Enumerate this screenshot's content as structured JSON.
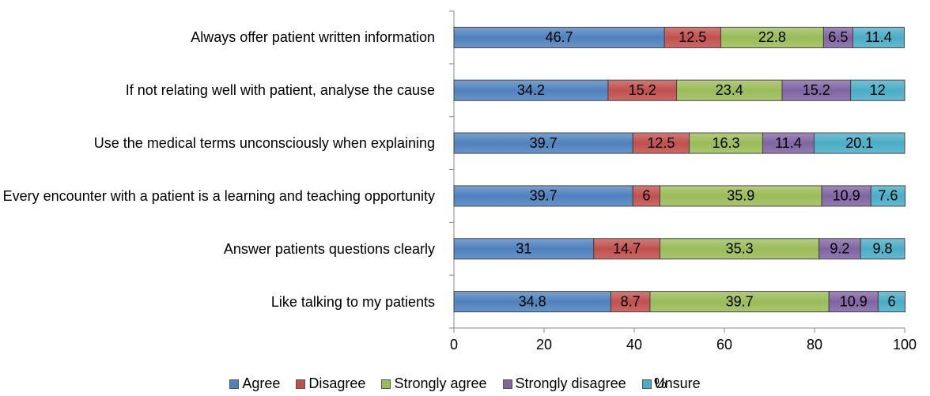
{
  "chart_data": {
    "type": "stacked-bar-horizontal",
    "categories": [
      "Always offer patient written information",
      "If not relating well with patient, analyse the cause",
      "Use the medical terms unconsciously when explaining",
      "Every encounter with a patient is a learning and teaching opportunity",
      "Answer patients questions clearly",
      "Like talking to my patients"
    ],
    "series": [
      {
        "name": "Agree",
        "color": "#4f81bd",
        "values": [
          46.7,
          34.2,
          39.7,
          39.7,
          31,
          34.8
        ]
      },
      {
        "name": "Disagree",
        "color": "#c0504d",
        "values": [
          12.5,
          15.2,
          12.5,
          6,
          14.7,
          8.7
        ]
      },
      {
        "name": "Strongly agree",
        "color": "#9bbb59",
        "values": [
          22.8,
          23.4,
          16.3,
          35.9,
          35.3,
          39.7
        ]
      },
      {
        "name": "Strongly disagree",
        "color": "#8064a2",
        "values": [
          6.5,
          15.2,
          11.4,
          10.9,
          9.2,
          10.9
        ]
      },
      {
        "name": "Unsure",
        "color": "#4bacc6",
        "values": [
          11.4,
          12,
          20.1,
          7.6,
          9.8,
          6
        ]
      }
    ],
    "x_label": "%",
    "xlim": [
      0,
      100
    ],
    "xticks": [
      0,
      20,
      40,
      60,
      80,
      100
    ]
  }
}
